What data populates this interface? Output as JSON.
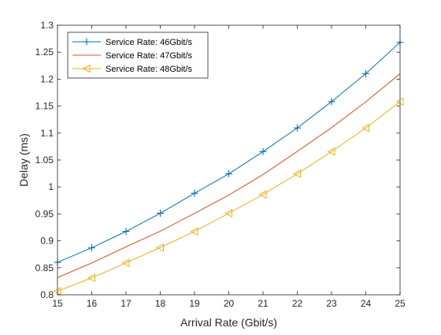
{
  "chart_data": {
    "type": "line",
    "title": "",
    "xlabel": "Arrival Rate (Gbit/s)",
    "ylabel": "Delay (ms)",
    "xlim": [
      15,
      25
    ],
    "ylim": [
      0.8,
      1.3
    ],
    "xticks": [
      15,
      16,
      17,
      18,
      19,
      20,
      21,
      22,
      23,
      24,
      25
    ],
    "xtick_labels": [
      "15",
      "16",
      "17",
      "18",
      "19",
      "20",
      "21",
      "22",
      "23",
      "24",
      "25"
    ],
    "yticks": [
      0.8,
      0.85,
      0.9,
      0.95,
      1.0,
      1.05,
      1.1,
      1.15,
      1.2,
      1.25,
      1.3
    ],
    "ytick_labels": [
      "0.8",
      "0.85",
      "0.9",
      "0.95",
      "1",
      "1.05",
      "1.1",
      "1.15",
      "1.2",
      "1.25",
      "1.3"
    ],
    "grid": false,
    "legend_position": "top-left",
    "x": [
      15,
      16,
      17,
      18,
      19,
      20,
      21,
      22,
      23,
      24,
      25
    ],
    "series": [
      {
        "name": "Service Rate: 46Gbit/s",
        "color": "#0072BD",
        "marker": "plus",
        "values": [
          0.8602,
          0.8872,
          0.9175,
          0.9513,
          0.9883,
          1.0244,
          1.0656,
          1.1094,
          1.1583,
          1.2103,
          1.2683
        ]
      },
      {
        "name": "Service Rate: 47Gbit/s",
        "color": "#D95319",
        "marker": "none",
        "values": [
          0.832,
          0.859,
          0.889,
          0.918,
          0.951,
          0.985,
          1.023,
          1.066,
          1.11,
          1.158,
          1.21
        ]
      },
      {
        "name": "Service Rate: 48Gbit/s",
        "color": "#EDB120",
        "marker": "triangle-left",
        "values": [
          0.8066,
          0.8314,
          0.8592,
          0.8877,
          0.9175,
          0.9513,
          0.9862,
          1.0244,
          1.0656,
          1.1094,
          1.1583
        ]
      }
    ]
  }
}
